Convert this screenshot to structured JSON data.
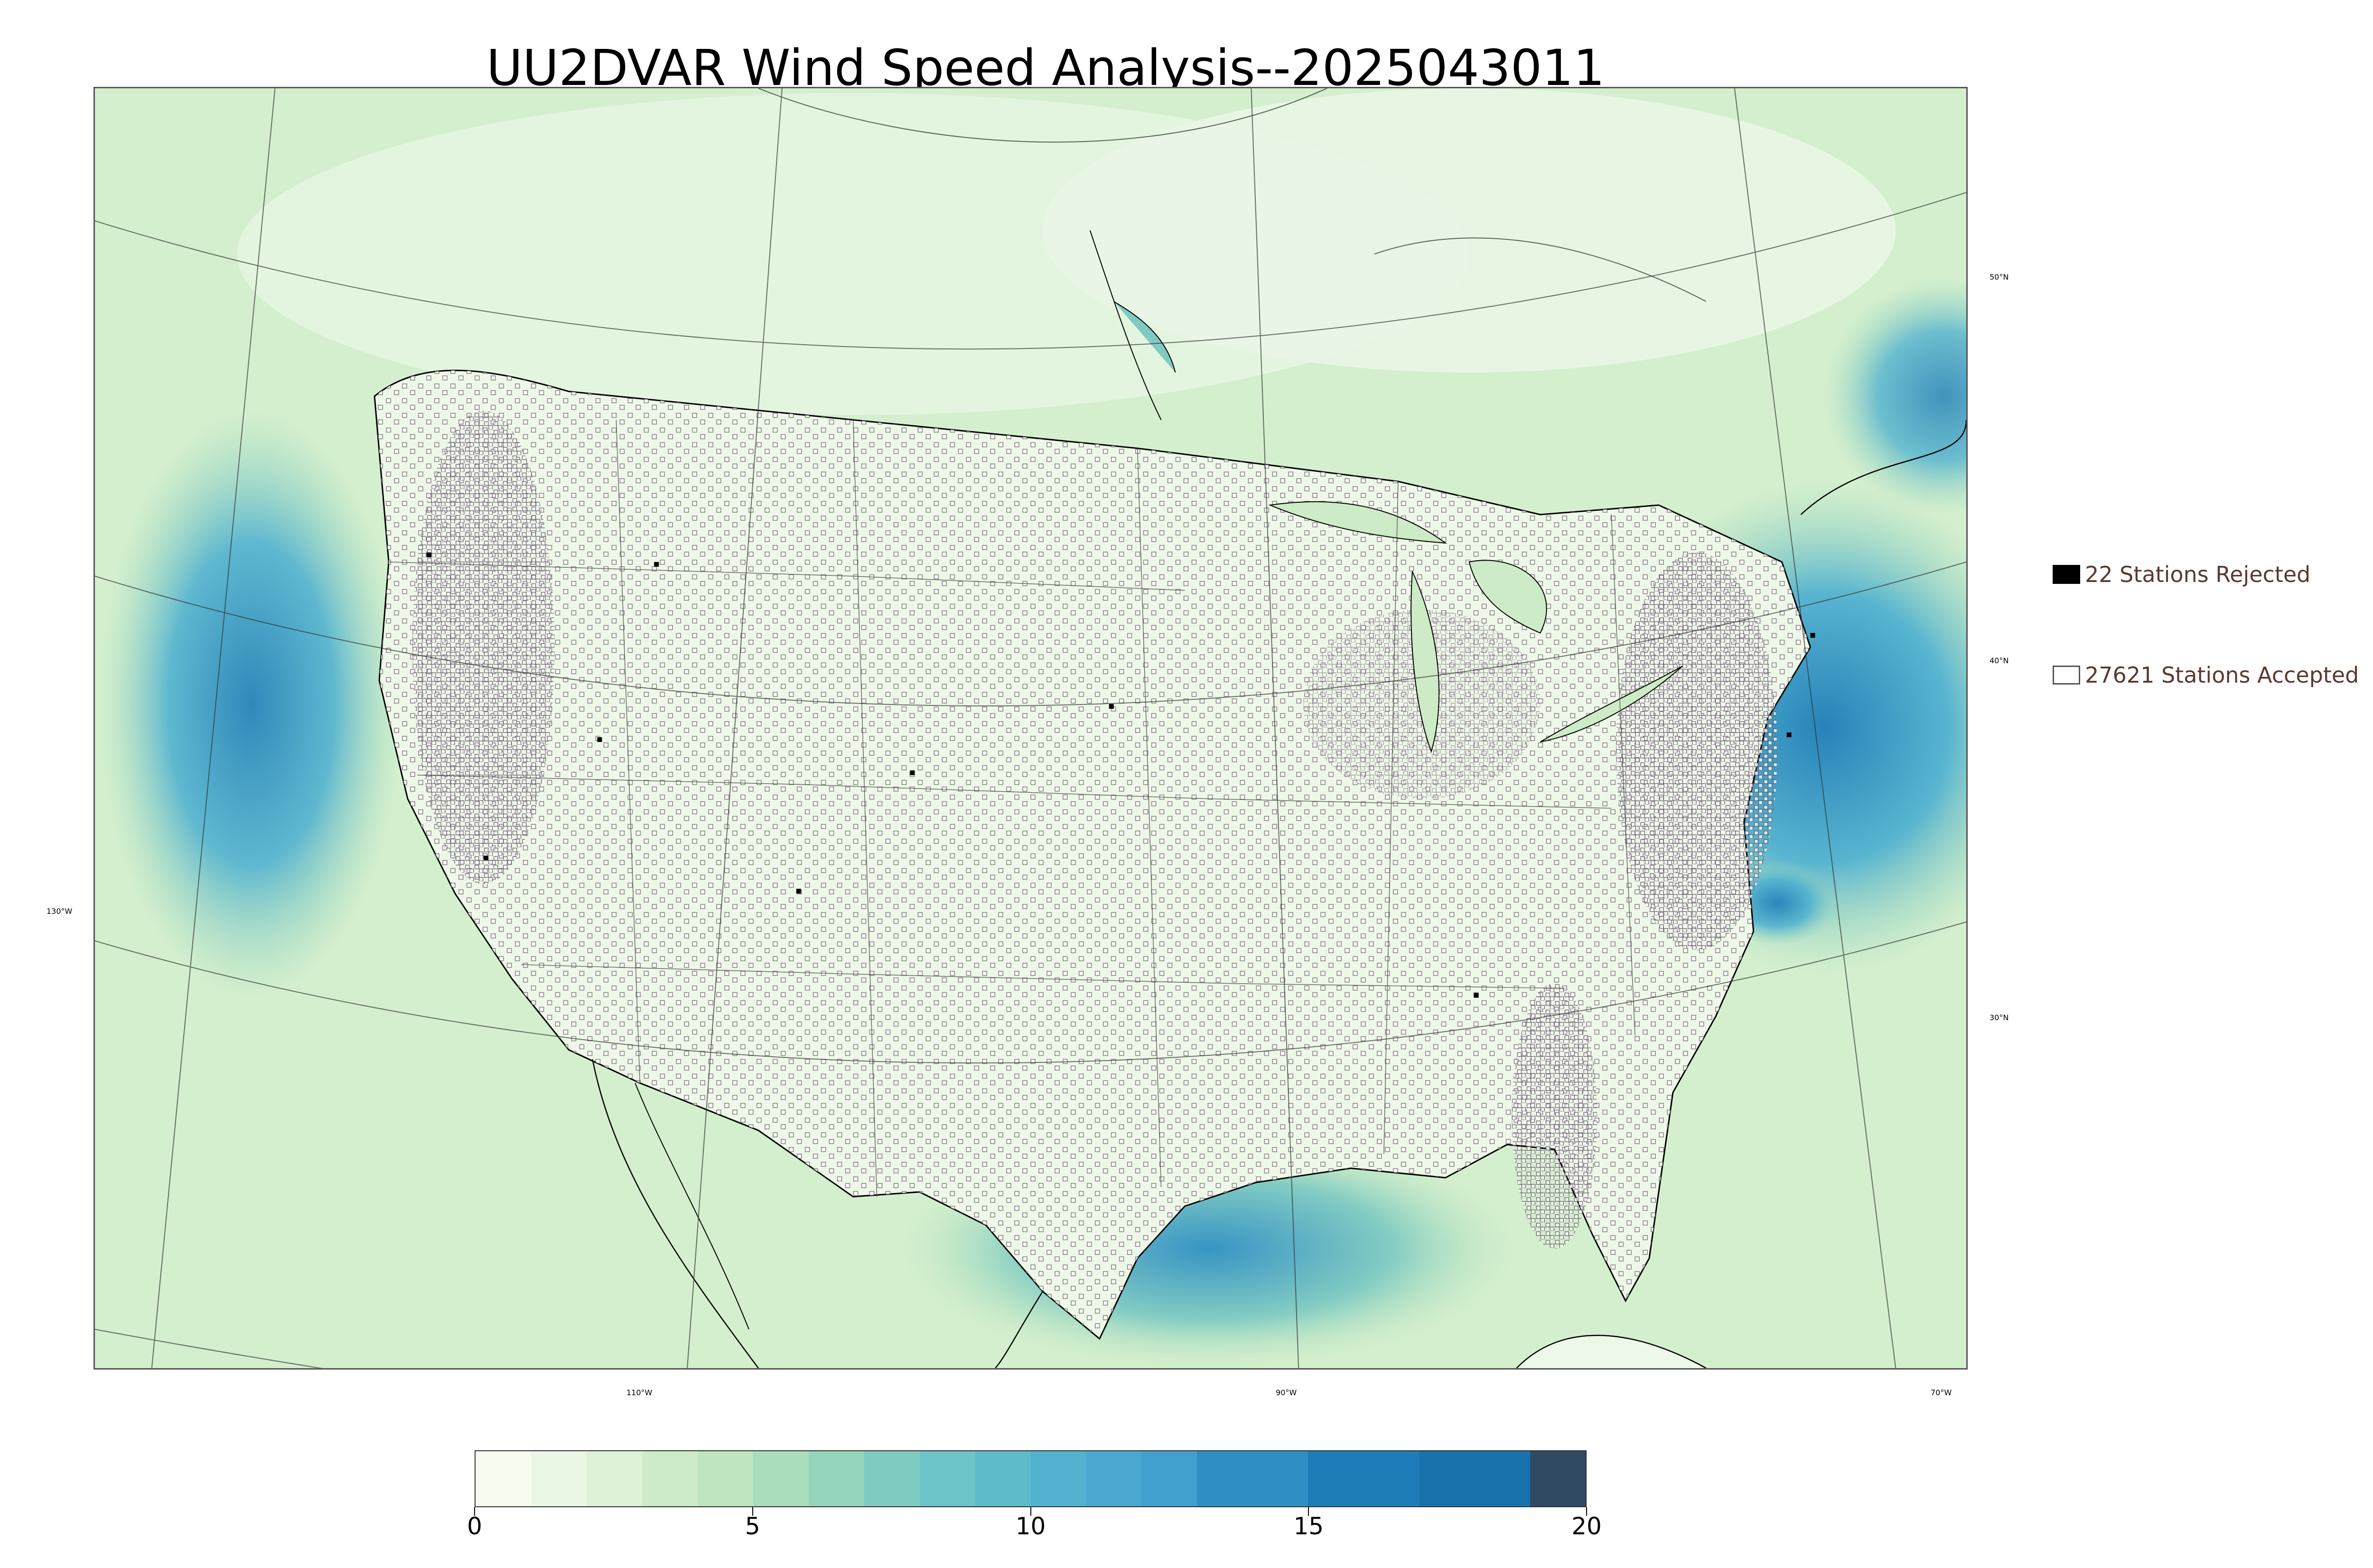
{
  "title": "UU2DVAR Wind Speed Analysis--2025043011",
  "legend": {
    "rejected": {
      "label": "22 Stations Rejected",
      "count": 22,
      "color": "#000000"
    },
    "accepted": {
      "label": "27621 Stations Accepted",
      "count": 27621,
      "color": "#ffffff"
    }
  },
  "map": {
    "latitude_labels": [
      "50°N",
      "40°N",
      "30°N"
    ],
    "longitude_labels": [
      "130°W",
      "110°W",
      "90°W",
      "70°W"
    ],
    "colors": {
      "land_calm": "#eef8e8",
      "water_strong": "#1e7db8",
      "coastline": "#000000",
      "borders": "#333333"
    }
  },
  "colorbar": {
    "ticks": [
      "0",
      "5",
      "10",
      "15",
      "20"
    ],
    "range": [
      0,
      20
    ],
    "bins": [
      {
        "from": 0,
        "to": 1,
        "color": "#f7fcf0"
      },
      {
        "from": 1,
        "to": 2,
        "color": "#eaf7e4"
      },
      {
        "from": 2,
        "to": 3,
        "color": "#ddf1d6"
      },
      {
        "from": 3,
        "to": 4,
        "color": "#cdebc6"
      },
      {
        "from": 4,
        "to": 5,
        "color": "#bde5bf"
      },
      {
        "from": 5,
        "to": 6,
        "color": "#a9ddbc"
      },
      {
        "from": 6,
        "to": 7,
        "color": "#95d5bb"
      },
      {
        "from": 7,
        "to": 8,
        "color": "#7fcbc2"
      },
      {
        "from": 8,
        "to": 9,
        "color": "#6cc3c8"
      },
      {
        "from": 9,
        "to": 10,
        "color": "#5dbbcc"
      },
      {
        "from": 10,
        "to": 11,
        "color": "#52b2d0"
      },
      {
        "from": 11,
        "to": 12,
        "color": "#4aa8d1"
      },
      {
        "from": 12,
        "to": 13,
        "color": "#42a0ce"
      },
      {
        "from": 13,
        "to": 15,
        "color": "#2f8fc4"
      },
      {
        "from": 15,
        "to": 17,
        "color": "#1e7db8"
      },
      {
        "from": 17,
        "to": 19,
        "color": "#1a72ad"
      },
      {
        "from": 19,
        "to": 20,
        "color": "#2f4a62"
      }
    ]
  }
}
